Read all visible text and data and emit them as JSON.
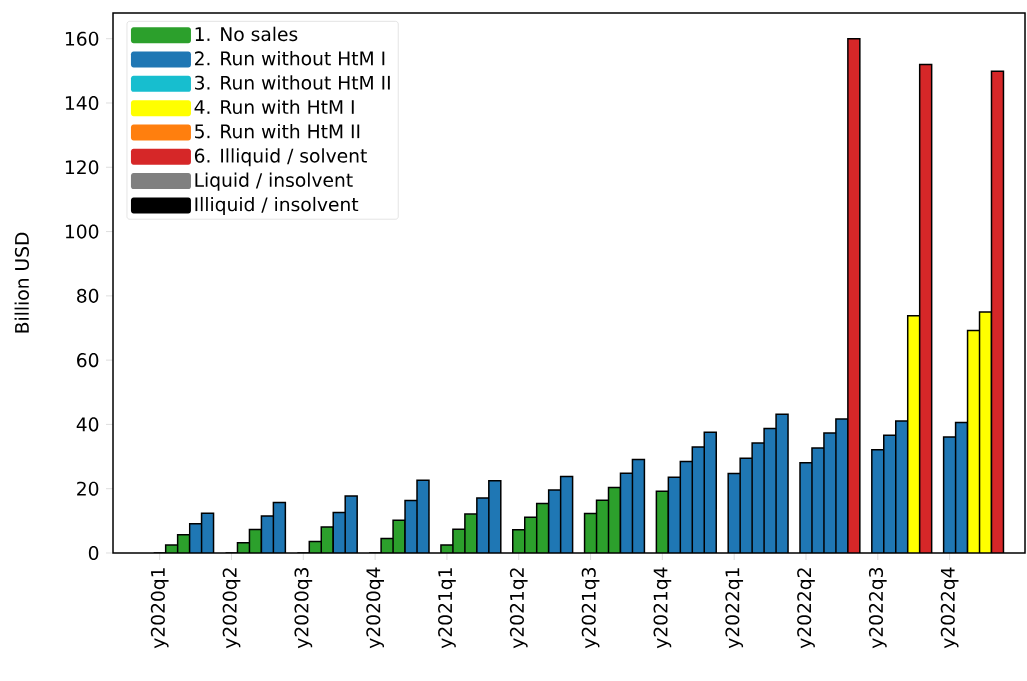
{
  "chart_data": {
    "type": "bar",
    "ylabel": "Billion USD",
    "categories": [
      "y2020q1",
      null,
      null,
      null,
      null,
      null,
      "y2020q2",
      null,
      null,
      null,
      null,
      null,
      "y2020q3",
      null,
      null,
      null,
      null,
      null,
      "y2020q4",
      null,
      null,
      null,
      null,
      null,
      "y2021q1",
      null,
      null,
      null,
      null,
      null,
      "y2021q2",
      null,
      null,
      null,
      null,
      null,
      "y2021q3",
      null,
      null,
      null,
      null,
      null,
      "y2021q4",
      null,
      null,
      null,
      null,
      null,
      "y2022q1",
      null,
      null,
      null,
      null,
      null,
      "y2022q2",
      null,
      null,
      null,
      null,
      null,
      "y2022q3",
      null,
      null,
      null,
      null,
      null,
      "y2022q4",
      null,
      null,
      null,
      null,
      null
    ],
    "series": [
      {
        "name": "1. No sales",
        "color": "#2ca02c",
        "values": [
          0,
          2.5,
          5.7,
          null,
          null,
          null,
          0,
          3.2,
          7.3,
          null,
          null,
          null,
          0,
          3.6,
          8.1,
          null,
          null,
          null,
          0,
          4.5,
          10.2,
          null,
          null,
          null,
          2.5,
          7.4,
          12.1,
          null,
          null,
          null,
          7.2,
          11.1,
          15.4,
          null,
          null,
          null,
          12.3,
          16.4,
          20.4,
          null,
          null,
          null,
          19.2,
          null,
          null,
          null,
          null,
          null,
          null,
          null,
          null,
          null,
          null,
          null,
          null,
          null,
          null,
          null,
          null,
          null,
          null,
          null,
          null,
          null,
          null,
          null,
          null,
          null,
          null,
          null,
          null,
          null
        ]
      },
      {
        "name": "2. Run without HtM I",
        "color": "#1f77b4",
        "values": [
          null,
          null,
          null,
          9.1,
          12.4,
          null,
          null,
          null,
          null,
          11.5,
          15.7,
          null,
          null,
          null,
          null,
          12.6,
          17.7,
          null,
          null,
          null,
          null,
          16.3,
          22.6,
          null,
          null,
          null,
          null,
          17.1,
          22.5,
          null,
          null,
          null,
          null,
          19.6,
          23.8,
          null,
          null,
          null,
          null,
          24.8,
          29.1,
          null,
          null,
          23.6,
          28.5,
          33.0,
          37.6,
          null,
          24.7,
          29.5,
          34.2,
          38.7,
          43.2,
          null,
          28.1,
          32.7,
          37.3,
          41.7,
          null,
          null,
          32.1,
          36.6,
          41.1,
          null,
          null,
          null,
          36.1,
          40.6,
          null,
          null,
          null,
          null
        ]
      },
      {
        "name": "3. Run without HtM II",
        "color": "#17becf",
        "values": [
          null,
          null,
          null,
          null,
          null,
          null,
          null,
          null,
          null,
          null,
          null,
          null,
          null,
          null,
          null,
          null,
          null,
          null,
          null,
          null,
          null,
          null,
          null,
          null,
          null,
          null,
          null,
          null,
          null,
          null,
          null,
          null,
          null,
          null,
          null,
          null,
          null,
          null,
          null,
          null,
          null,
          null,
          null,
          null,
          null,
          null,
          null,
          null,
          null,
          null,
          null,
          null,
          null,
          null,
          null,
          null,
          null,
          null,
          null,
          null,
          null,
          null,
          null,
          null,
          null,
          null,
          null,
          null,
          null,
          null,
          null,
          null
        ]
      },
      {
        "name": "4. Run with HtM I",
        "color": "#ffff00",
        "values": [
          null,
          null,
          null,
          null,
          null,
          null,
          null,
          null,
          null,
          null,
          null,
          null,
          null,
          null,
          null,
          null,
          null,
          null,
          null,
          null,
          null,
          null,
          null,
          null,
          null,
          null,
          null,
          null,
          null,
          null,
          null,
          null,
          null,
          null,
          null,
          null,
          null,
          null,
          null,
          null,
          null,
          null,
          null,
          null,
          null,
          null,
          null,
          null,
          null,
          null,
          null,
          null,
          null,
          null,
          null,
          null,
          null,
          null,
          null,
          null,
          null,
          null,
          null,
          73.8,
          null,
          null,
          null,
          null,
          69.2,
          75.0,
          null,
          null
        ]
      },
      {
        "name": "5. Run with HtM II",
        "color": "#ff7f0e",
        "values": [
          null,
          null,
          null,
          null,
          null,
          null,
          null,
          null,
          null,
          null,
          null,
          null,
          null,
          null,
          null,
          null,
          null,
          null,
          null,
          null,
          null,
          null,
          null,
          null,
          null,
          null,
          null,
          null,
          null,
          null,
          null,
          null,
          null,
          null,
          null,
          null,
          null,
          null,
          null,
          null,
          null,
          null,
          null,
          null,
          null,
          null,
          null,
          null,
          null,
          null,
          null,
          null,
          null,
          null,
          null,
          null,
          null,
          null,
          null,
          null,
          null,
          null,
          null,
          null,
          null,
          null,
          null,
          null,
          null,
          null,
          null,
          null
        ]
      },
      {
        "name": "6. Illiquid / solvent",
        "color": "#d62728",
        "values": [
          null,
          null,
          null,
          null,
          null,
          null,
          null,
          null,
          null,
          null,
          null,
          null,
          null,
          null,
          null,
          null,
          null,
          null,
          null,
          null,
          null,
          null,
          null,
          null,
          null,
          null,
          null,
          null,
          null,
          null,
          null,
          null,
          null,
          null,
          null,
          null,
          null,
          null,
          null,
          null,
          null,
          null,
          null,
          null,
          null,
          null,
          null,
          null,
          null,
          null,
          null,
          null,
          null,
          null,
          null,
          null,
          null,
          null,
          160.0,
          null,
          null,
          null,
          null,
          null,
          152.0,
          null,
          null,
          null,
          null,
          null,
          149.9,
          null
        ]
      },
      {
        "name": "Liquid / insolvent",
        "color": "#808080",
        "values": [
          null,
          null,
          null,
          null,
          null,
          null,
          null,
          null,
          null,
          null,
          null,
          null,
          null,
          null,
          null,
          null,
          null,
          null,
          null,
          null,
          null,
          null,
          null,
          null,
          null,
          null,
          null,
          null,
          null,
          null,
          null,
          null,
          null,
          null,
          null,
          null,
          null,
          null,
          null,
          null,
          null,
          null,
          null,
          null,
          null,
          null,
          null,
          null,
          null,
          null,
          null,
          null,
          null,
          null,
          null,
          null,
          null,
          null,
          null,
          null,
          null,
          null,
          null,
          null,
          null,
          null,
          null,
          null,
          null,
          null,
          null,
          null
        ]
      },
      {
        "name": "Illiquid / insolvent",
        "color": "#000000",
        "values": [
          null,
          null,
          null,
          null,
          null,
          null,
          null,
          null,
          null,
          null,
          null,
          null,
          null,
          null,
          null,
          null,
          null,
          null,
          null,
          null,
          null,
          null,
          null,
          null,
          null,
          null,
          null,
          null,
          null,
          null,
          null,
          null,
          null,
          null,
          null,
          null,
          null,
          null,
          null,
          null,
          null,
          null,
          null,
          null,
          null,
          null,
          null,
          null,
          null,
          null,
          null,
          null,
          null,
          null,
          null,
          null,
          null,
          null,
          null,
          null,
          null,
          null,
          null,
          null,
          null,
          null,
          null,
          null,
          null,
          null,
          null,
          null
        ]
      }
    ],
    "ylim": [
      0,
      168
    ],
    "yticks": [
      0,
      20,
      40,
      60,
      80,
      100,
      120,
      140,
      160
    ],
    "legend": "top left"
  }
}
